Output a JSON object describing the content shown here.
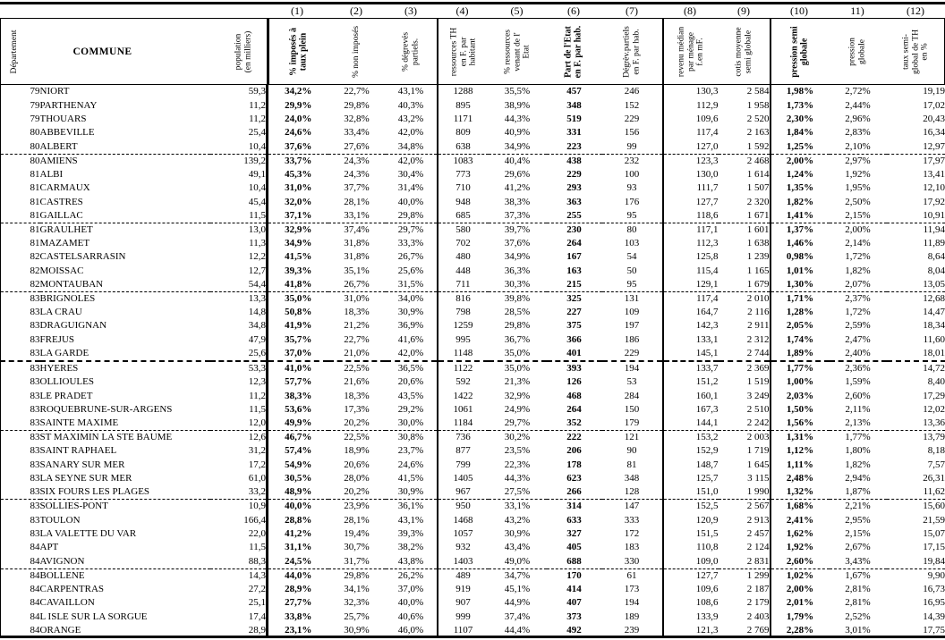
{
  "document": {
    "description": "Tableau statistique taxe d'habitation par commune",
    "left_headers": {
      "departement": "Département",
      "commune": "COMMUNE",
      "population": "population\n(en milliers)"
    },
    "columns": [
      {
        "num": "(1)",
        "label": "% imposés à\ntaux plein",
        "bold": true
      },
      {
        "num": "(2)",
        "label": "% non imposés",
        "bold": false
      },
      {
        "num": "(3)",
        "label": "% dégrevés\npartiels.",
        "bold": false
      },
      {
        "num": "(4)",
        "label": "ressources TH\nen F. par\nhabitant",
        "bold": false
      },
      {
        "num": "(5)",
        "label": "% ressources\nvenant de l'\nEtat",
        "bold": false
      },
      {
        "num": "(6)",
        "label": "Part de l'Etat\nen F. par hab.",
        "bold": true
      },
      {
        "num": "(7)",
        "label": "Dégrèv.partiels\nen F. par hab.",
        "bold": false
      },
      {
        "num": "(8)",
        "label": "revenu médian\npar ménage\nf.en mF.",
        "bold": false
      },
      {
        "num": "(9)",
        "label": "cotis moyenne\nsemi globale",
        "bold": false
      },
      {
        "num": "(10)",
        "label": "pression semi\nglobale",
        "bold": true
      },
      {
        "num": "11)",
        "label": "pression\nglobale",
        "bold": false
      },
      {
        "num": "(12)",
        "label": "taux semi-\nglobal de TH\nen %",
        "bold": false
      }
    ],
    "rows": [
      [
        "79",
        "NIORT",
        "59,3",
        "34,2%",
        "22,7%",
        "43,1%",
        "1288",
        "35,5%",
        "457",
        "246",
        "130,3",
        "2 584",
        "1,98%",
        "2,72%",
        "19,19"
      ],
      [
        "79",
        "PARTHENAY",
        "11,2",
        "29,9%",
        "29,8%",
        "40,3%",
        "895",
        "38,9%",
        "348",
        "152",
        "112,9",
        "1 958",
        "1,73%",
        "2,44%",
        "17,02"
      ],
      [
        "79",
        "THOUARS",
        "11,2",
        "24,0%",
        "32,8%",
        "43,2%",
        "1171",
        "44,3%",
        "519",
        "229",
        "109,6",
        "2 520",
        "2,30%",
        "2,96%",
        "20,43"
      ],
      [
        "80",
        "ABBEVILLE",
        "25,4",
        "24,6%",
        "33,4%",
        "42,0%",
        "809",
        "40,9%",
        "331",
        "156",
        "117,4",
        "2 163",
        "1,84%",
        "2,83%",
        "16,34"
      ],
      [
        "80",
        "ALBERT",
        "10,4",
        "37,6%",
        "27,6%",
        "34,8%",
        "638",
        "34,9%",
        "223",
        "99",
        "127,0",
        "1 592",
        "1,25%",
        "2,10%",
        "12,97"
      ],
      [
        "80",
        "AMIENS",
        "139,2",
        "33,7%",
        "24,3%",
        "42,0%",
        "1083",
        "40,4%",
        "438",
        "232",
        "123,3",
        "2 468",
        "2,00%",
        "2,97%",
        "17,97"
      ],
      [
        "81",
        "ALBI",
        "49,1",
        "45,3%",
        "24,3%",
        "30,4%",
        "773",
        "29,6%",
        "229",
        "100",
        "130,0",
        "1 614",
        "1,24%",
        "1,92%",
        "13,41"
      ],
      [
        "81",
        "CARMAUX",
        "10,4",
        "31,0%",
        "37,7%",
        "31,4%",
        "710",
        "41,2%",
        "293",
        "93",
        "111,7",
        "1 507",
        "1,35%",
        "1,95%",
        "12,10"
      ],
      [
        "81",
        "CASTRES",
        "45,4",
        "32,0%",
        "28,1%",
        "40,0%",
        "948",
        "38,3%",
        "363",
        "176",
        "127,7",
        "2 320",
        "1,82%",
        "2,50%",
        "17,92"
      ],
      [
        "81",
        "GAILLAC",
        "11,5",
        "37,1%",
        "33,1%",
        "29,8%",
        "685",
        "37,3%",
        "255",
        "95",
        "118,6",
        "1 671",
        "1,41%",
        "2,15%",
        "10,91"
      ],
      [
        "81",
        "GRAULHET",
        "13,0",
        "32,9%",
        "37,4%",
        "29,7%",
        "580",
        "39,7%",
        "230",
        "80",
        "117,1",
        "1 601",
        "1,37%",
        "2,00%",
        "11,94"
      ],
      [
        "81",
        "MAZAMET",
        "11,3",
        "34,9%",
        "31,8%",
        "33,3%",
        "702",
        "37,6%",
        "264",
        "103",
        "112,3",
        "1 638",
        "1,46%",
        "2,14%",
        "11,89"
      ],
      [
        "82",
        "CASTELSARRASIN",
        "12,2",
        "41,5%",
        "31,8%",
        "26,7%",
        "480",
        "34,9%",
        "167",
        "54",
        "125,8",
        "1 239",
        "0,98%",
        "1,72%",
        "8,64"
      ],
      [
        "82",
        "MOISSAC",
        "12,7",
        "39,3%",
        "35,1%",
        "25,6%",
        "448",
        "36,3%",
        "163",
        "50",
        "115,4",
        "1 165",
        "1,01%",
        "1,82%",
        "8,04"
      ],
      [
        "82",
        "MONTAUBAN",
        "54,4",
        "41,8%",
        "26,7%",
        "31,5%",
        "711",
        "30,3%",
        "215",
        "95",
        "129,1",
        "1 679",
        "1,30%",
        "2,07%",
        "13,05"
      ],
      [
        "83",
        "BRIGNOLES",
        "13,3",
        "35,0%",
        "31,0%",
        "34,0%",
        "816",
        "39,8%",
        "325",
        "131",
        "117,4",
        "2 010",
        "1,71%",
        "2,37%",
        "12,68"
      ],
      [
        "83",
        "LA CRAU",
        "14,8",
        "50,8%",
        "18,3%",
        "30,9%",
        "798",
        "28,5%",
        "227",
        "109",
        "164,7",
        "2 116",
        "1,28%",
        "1,72%",
        "14,47"
      ],
      [
        "83",
        "DRAGUIGNAN",
        "34,8",
        "41,9%",
        "21,2%",
        "36,9%",
        "1259",
        "29,8%",
        "375",
        "197",
        "142,3",
        "2 911",
        "2,05%",
        "2,59%",
        "18,34"
      ],
      [
        "83",
        "FREJUS",
        "47,9",
        "35,7%",
        "22,7%",
        "41,6%",
        "995",
        "36,7%",
        "366",
        "186",
        "133,1",
        "2 312",
        "1,74%",
        "2,47%",
        "11,60"
      ],
      [
        "83",
        "LA GARDE",
        "25,6",
        "37,0%",
        "21,0%",
        "42,0%",
        "1148",
        "35,0%",
        "401",
        "229",
        "145,1",
        "2 744",
        "1,89%",
        "2,40%",
        "18,01"
      ],
      [
        "83",
        "HYERES",
        "53,3",
        "41,0%",
        "22,5%",
        "36,5%",
        "1122",
        "35,0%",
        "393",
        "194",
        "133,7",
        "2 369",
        "1,77%",
        "2,36%",
        "14,72"
      ],
      [
        "83",
        "OLLIOULES",
        "12,3",
        "57,7%",
        "21,6%",
        "20,6%",
        "592",
        "21,3%",
        "126",
        "53",
        "151,2",
        "1 519",
        "1,00%",
        "1,59%",
        "8,40"
      ],
      [
        "83",
        "LE PRADET",
        "11,2",
        "38,3%",
        "18,3%",
        "43,5%",
        "1422",
        "32,9%",
        "468",
        "284",
        "160,1",
        "3 249",
        "2,03%",
        "2,60%",
        "17,29"
      ],
      [
        "83",
        "ROQUEBRUNE-SUR-ARGENS",
        "11,5",
        "53,6%",
        "17,3%",
        "29,2%",
        "1061",
        "24,9%",
        "264",
        "150",
        "167,3",
        "2 510",
        "1,50%",
        "2,11%",
        "12,02"
      ],
      [
        "83",
        "SAINTE MAXIME",
        "12,0",
        "49,9%",
        "20,2%",
        "30,0%",
        "1184",
        "29,7%",
        "352",
        "179",
        "144,1",
        "2 242",
        "1,56%",
        "2,13%",
        "13,36"
      ],
      [
        "83",
        "ST MAXIMIN LA STE BAUME",
        "12,6",
        "46,7%",
        "22,5%",
        "30,8%",
        "736",
        "30,2%",
        "222",
        "121",
        "153,2",
        "2 003",
        "1,31%",
        "1,77%",
        "13,79"
      ],
      [
        "83",
        "SAINT RAPHAEL",
        "31,2",
        "57,4%",
        "18,9%",
        "23,7%",
        "877",
        "23,5%",
        "206",
        "90",
        "152,9",
        "1 719",
        "1,12%",
        "1,80%",
        "8,18"
      ],
      [
        "83",
        "SANARY SUR MER",
        "17,2",
        "54,9%",
        "20,6%",
        "24,6%",
        "799",
        "22,3%",
        "178",
        "81",
        "148,7",
        "1 645",
        "1,11%",
        "1,82%",
        "7,57"
      ],
      [
        "83",
        "LA SEYNE SUR MER",
        "61,0",
        "30,5%",
        "28,0%",
        "41,5%",
        "1405",
        "44,3%",
        "623",
        "348",
        "125,7",
        "3 115",
        "2,48%",
        "2,94%",
        "26,31"
      ],
      [
        "83",
        "SIX FOURS LES PLAGES",
        "33,2",
        "48,9%",
        "20,2%",
        "30,9%",
        "967",
        "27,5%",
        "266",
        "128",
        "151,0",
        "1 990",
        "1,32%",
        "1,87%",
        "11,62"
      ],
      [
        "83",
        "SOLLIES-PONT",
        "10,9",
        "40,0%",
        "23,9%",
        "36,1%",
        "950",
        "33,1%",
        "314",
        "147",
        "152,5",
        "2 567",
        "1,68%",
        "2,21%",
        "15,60"
      ],
      [
        "83",
        "TOULON",
        "166,4",
        "28,8%",
        "28,1%",
        "43,1%",
        "1468",
        "43,2%",
        "633",
        "333",
        "120,9",
        "2 913",
        "2,41%",
        "2,95%",
        "21,59"
      ],
      [
        "83",
        "LA VALETTE DU VAR",
        "22,0",
        "41,2%",
        "19,4%",
        "39,3%",
        "1057",
        "30,9%",
        "327",
        "172",
        "151,5",
        "2 457",
        "1,62%",
        "2,15%",
        "15,07"
      ],
      [
        "84",
        "APT",
        "11,5",
        "31,1%",
        "30,7%",
        "38,2%",
        "932",
        "43,4%",
        "405",
        "183",
        "110,8",
        "2 124",
        "1,92%",
        "2,67%",
        "17,15"
      ],
      [
        "84",
        "AVIGNON",
        "88,3",
        "24,5%",
        "31,7%",
        "43,8%",
        "1403",
        "49,0%",
        "688",
        "330",
        "109,0",
        "2 831",
        "2,60%",
        "3,43%",
        "19,84"
      ],
      [
        "84",
        "BOLLENE",
        "14,3",
        "44,0%",
        "29,8%",
        "26,2%",
        "489",
        "34,7%",
        "170",
        "61",
        "127,7",
        "1 299",
        "1,02%",
        "1,67%",
        "9,90"
      ],
      [
        "84",
        "CARPENTRAS",
        "27,2",
        "28,9%",
        "34,1%",
        "37,0%",
        "919",
        "45,1%",
        "414",
        "173",
        "109,6",
        "2 187",
        "2,00%",
        "2,81%",
        "16,73"
      ],
      [
        "84",
        "CAVAILLON",
        "25,1",
        "27,7%",
        "32,3%",
        "40,0%",
        "907",
        "44,9%",
        "407",
        "194",
        "108,6",
        "2 179",
        "2,01%",
        "2,81%",
        "16,95"
      ],
      [
        "84",
        "L ISLE SUR LA SORGUE",
        "17,4",
        "33,8%",
        "25,7%",
        "40,6%",
        "999",
        "37,4%",
        "373",
        "189",
        "133,9",
        "2 403",
        "1,79%",
        "2,52%",
        "14,39"
      ],
      [
        "84",
        "ORANGE",
        "28,9",
        "23,1%",
        "30,9%",
        "46,0%",
        "1107",
        "44,4%",
        "492",
        "239",
        "121,3",
        "2 769",
        "2,28%",
        "3,01%",
        "17,75"
      ]
    ],
    "separator_after_rows": [
      5,
      10,
      15,
      25,
      30,
      35
    ],
    "heavy_separator_after_rows": [
      20
    ],
    "colors": {
      "ink": "#000000",
      "paper": "#ffffff"
    }
  }
}
